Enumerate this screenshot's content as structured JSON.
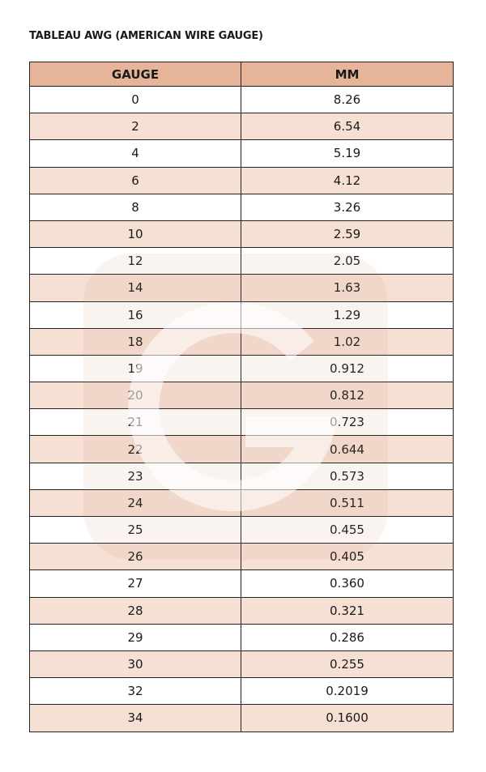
{
  "title": "TABLEAU AWG (AMERICAN WIRE GAUGE)",
  "table": {
    "headers": [
      "GAUGE",
      "MM"
    ],
    "rows": [
      [
        "0",
        "8.26"
      ],
      [
        "2",
        "6.54"
      ],
      [
        "4",
        "5.19"
      ],
      [
        "6",
        "4.12"
      ],
      [
        "8",
        "3.26"
      ],
      [
        "10",
        "2.59"
      ],
      [
        "12",
        "2.05"
      ],
      [
        "14",
        "1.63"
      ],
      [
        "16",
        "1.29"
      ],
      [
        "18",
        "1.02"
      ],
      [
        "19",
        "0.912"
      ],
      [
        "20",
        "0.812"
      ],
      [
        "21",
        "0.723"
      ],
      [
        "22",
        "0.644"
      ],
      [
        "23",
        "0.573"
      ],
      [
        "24",
        "0.511"
      ],
      [
        "25",
        "0.455"
      ],
      [
        "26",
        "0.405"
      ],
      [
        "27",
        "0.360"
      ],
      [
        "28",
        "0.321"
      ],
      [
        "29",
        "0.286"
      ],
      [
        "30",
        "0.255"
      ],
      [
        "32",
        "0.2019"
      ],
      [
        "34",
        "0.1600"
      ]
    ]
  },
  "colors": {
    "header": "#e6b599",
    "stripe": "#f5e0d3"
  },
  "watermark": {
    "icon": "g-logo-watermark"
  }
}
